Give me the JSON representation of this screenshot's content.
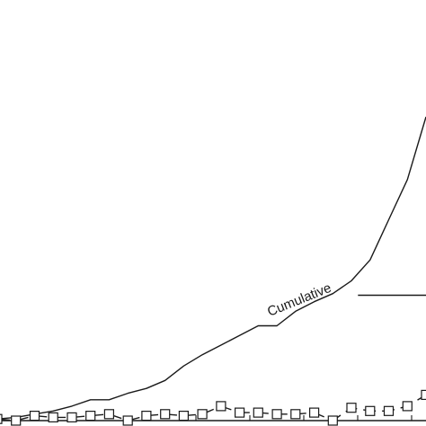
{
  "chart_data": {
    "type": "line",
    "x_axis_tick_count": 8,
    "series": [
      {
        "name": "Cumulative",
        "style": "solid",
        "color": "#1a1a1a",
        "x": [
          0,
          2,
          4,
          6,
          8,
          10,
          12,
          14,
          16,
          18,
          20,
          22,
          24,
          26,
          28,
          30,
          32,
          34,
          36,
          38,
          40,
          42,
          44,
          46
        ],
        "values": [
          1,
          2,
          4,
          6,
          9,
          13,
          13,
          17,
          20,
          25,
          34,
          41,
          47,
          53,
          59,
          59,
          68,
          74,
          79,
          87,
          100,
          125,
          150,
          189
        ]
      },
      {
        "style": "dashed",
        "marker": "square",
        "color": "#1a1a1a",
        "x": [
          0,
          2,
          4,
          6,
          8,
          10,
          12,
          14,
          16,
          18,
          20,
          22,
          24,
          26,
          28,
          30,
          32,
          34,
          36,
          38,
          40,
          42,
          44,
          46
        ],
        "values": [
          1,
          0,
          3,
          2,
          2,
          3,
          4,
          0,
          3,
          4,
          3,
          4,
          9,
          5,
          5,
          4,
          4,
          5,
          0,
          8,
          6,
          6,
          9,
          16
        ]
      },
      {
        "style": "solid",
        "color": "#1a1a1a",
        "x": [
          38.7,
          46
        ],
        "values": [
          78,
          78
        ]
      }
    ],
    "xlim": [
      0,
      46
    ],
    "ylim": [
      0,
      255
    ]
  }
}
